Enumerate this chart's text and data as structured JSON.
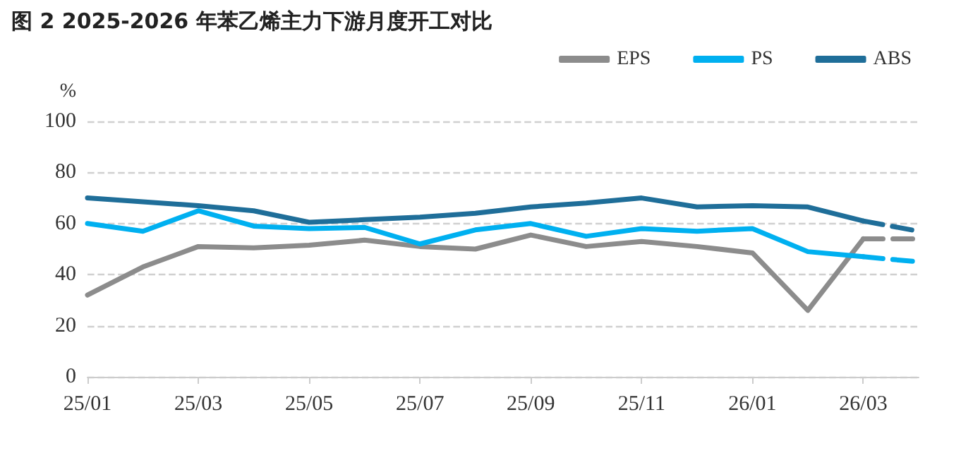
{
  "chart_data": {
    "type": "line",
    "title": "图 2 2025-2026 年苯乙烯主力下游月度开工对比",
    "ylabel": "%",
    "categories": [
      "25/01",
      null,
      "25/03",
      null,
      "25/05",
      null,
      "25/07",
      null,
      "25/09",
      null,
      "25/11",
      null,
      "26/01",
      null,
      "26/03",
      null
    ],
    "series": [
      {
        "name": "EPS",
        "color": "#8c8c8c",
        "values": [
          32,
          43,
          51,
          50.5,
          51.5,
          53.5,
          51,
          50,
          55.5,
          51,
          53,
          51,
          48.5,
          26,
          54,
          null
        ]
      },
      {
        "name": "PS",
        "color": "#00b0f0",
        "values": [
          60,
          57,
          65,
          59,
          58,
          58.5,
          52,
          57.5,
          60,
          55,
          58,
          57,
          58,
          49,
          47,
          null
        ]
      },
      {
        "name": "ABS",
        "color": "#1f6e99",
        "values": [
          70,
          68.5,
          67,
          65,
          60.5,
          61.5,
          62.5,
          64,
          66.5,
          68,
          70,
          66.5,
          67,
          66.5,
          61,
          null
        ]
      },
      {
        "color": "#8c8c8c",
        "line_style": "dashed",
        "values": [
          null,
          null,
          null,
          null,
          null,
          null,
          null,
          null,
          null,
          null,
          null,
          null,
          null,
          null,
          54,
          54
        ]
      },
      {
        "color": "#00b0f0",
        "line_style": "dashed",
        "values": [
          null,
          null,
          null,
          null,
          null,
          null,
          null,
          null,
          null,
          null,
          null,
          null,
          null,
          null,
          47,
          45
        ]
      },
      {
        "color": "#1f6e99",
        "line_style": "dashed",
        "values": [
          null,
          null,
          null,
          null,
          null,
          null,
          null,
          null,
          null,
          null,
          null,
          null,
          null,
          null,
          61,
          57
        ]
      }
    ],
    "ylim": [
      0,
      100
    ],
    "yticks": [
      0,
      20,
      40,
      60,
      80,
      100
    ],
    "grid": "y",
    "legend": "top right",
    "marker": "none",
    "line_style": "solid"
  }
}
